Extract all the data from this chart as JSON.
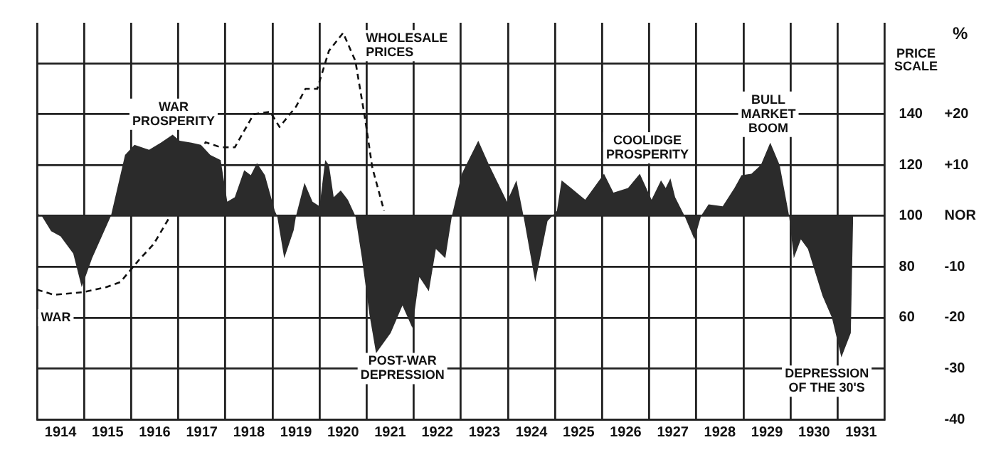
{
  "chart_data": {
    "type": "area",
    "ylabel": "%",
    "y2label": "PRICE SCALE",
    "xlim": [
      1914,
      1932
    ],
    "xticks": [
      {
        "value": 1914,
        "label": null
      },
      {
        "value": 1914.5,
        "label": "1914"
      },
      {
        "value": 1915,
        "label": null
      },
      {
        "value": 1915.5,
        "label": "1915"
      },
      {
        "value": 1916,
        "label": null
      },
      {
        "value": 1916.5,
        "label": "1916"
      },
      {
        "value": 1917,
        "label": null
      },
      {
        "value": 1917.5,
        "label": "1917"
      },
      {
        "value": 1918,
        "label": null
      },
      {
        "value": 1918.5,
        "label": "1918"
      },
      {
        "value": 1919,
        "label": null
      },
      {
        "value": 1919.5,
        "label": "1919"
      },
      {
        "value": 1920,
        "label": null
      },
      {
        "value": 1920.5,
        "label": "1920"
      },
      {
        "value": 1921,
        "label": null
      },
      {
        "value": 1921.5,
        "label": "1921"
      },
      {
        "value": 1922,
        "label": null
      },
      {
        "value": 1922.5,
        "label": "1922"
      },
      {
        "value": 1923,
        "label": null
      },
      {
        "value": 1923.5,
        "label": "1923"
      },
      {
        "value": 1924,
        "label": null
      },
      {
        "value": 1924.5,
        "label": "1924"
      },
      {
        "value": 1925,
        "label": null
      },
      {
        "value": 1925.5,
        "label": "1925"
      },
      {
        "value": 1926,
        "label": null
      },
      {
        "value": 1926.5,
        "label": "1926"
      },
      {
        "value": 1927,
        "label": null
      },
      {
        "value": 1927.5,
        "label": "1927"
      },
      {
        "value": 1928,
        "label": null
      },
      {
        "value": 1928.5,
        "label": "1928"
      },
      {
        "value": 1929,
        "label": null
      },
      {
        "value": 1929.5,
        "label": "1929"
      },
      {
        "value": 1930,
        "label": null
      },
      {
        "value": 1930.5,
        "label": "1930"
      },
      {
        "value": 1931,
        "label": null
      },
      {
        "value": 1931.5,
        "label": "1931"
      },
      {
        "value": 1932,
        "label": null
      }
    ],
    "ylim": [
      -40,
      38
    ],
    "yticks": [
      -40,
      -30,
      -20,
      -10,
      {
        "value": 0,
        "label": "NOR"
      },
      {
        "value": 10,
        "label": "+10"
      },
      {
        "value": 20,
        "label": "+20"
      },
      {
        "value": 30,
        "label": null
      }
    ],
    "y2lim": [
      20,
      176
    ],
    "y2ticks": [
      60,
      80,
      100,
      120,
      140
    ],
    "grid": true,
    "legend": false,
    "marker": "none",
    "series": [
      {
        "color": "#2b2b2b",
        "x": [
          1914.0,
          1914.1,
          1914.3,
          1914.5,
          1914.77,
          1914.95,
          1915.17,
          1915.57,
          1915.87,
          1916.07,
          1916.38,
          1916.63,
          1916.88,
          1917.03,
          1917.28,
          1917.48,
          1917.68,
          1917.9,
          1918.04,
          1918.2,
          1918.4,
          1918.54,
          1918.67,
          1918.84,
          1919.05,
          1919.1,
          1919.25,
          1919.45,
          1919.5,
          1919.68,
          1919.85,
          1920.0,
          1920.12,
          1920.2,
          1920.3,
          1920.45,
          1920.6,
          1920.76,
          1920.9,
          1921.06,
          1921.2,
          1921.51,
          1921.76,
          1921.97,
          1922.12,
          1922.32,
          1922.47,
          1922.67,
          1922.81,
          1923.02,
          1923.37,
          1923.6,
          1923.98,
          1924.18,
          1924.33,
          1924.58,
          1924.84,
          1925.04,
          1925.14,
          1925.34,
          1925.64,
          1926.04,
          1926.24,
          1926.55,
          1926.8,
          1927.05,
          1927.25,
          1927.35,
          1927.45,
          1927.55,
          1927.75,
          1927.96,
          1928.1,
          1928.26,
          1928.56,
          1928.81,
          1928.96,
          1929.17,
          1929.37,
          1929.57,
          1929.77,
          1929.97,
          1930.07,
          1930.22,
          1930.37,
          1930.68,
          1930.88,
          1931.08,
          1931.28,
          1931.33
        ],
        "values": [
          0.5,
          0,
          -3,
          -4,
          -7.4,
          -14,
          -8.3,
          0,
          12,
          14,
          13,
          14.4,
          16,
          14.8,
          14.4,
          14,
          12,
          11,
          2.8,
          3.7,
          9,
          8,
          10.4,
          8,
          1,
          0,
          -8.3,
          -2.8,
          0,
          6.5,
          2.8,
          1.9,
          11,
          10,
          3.7,
          5,
          3.2,
          0,
          -8.3,
          -19.4,
          -27,
          -23,
          -17.6,
          -22,
          -12,
          -14.8,
          -6.5,
          -8.3,
          0,
          8.3,
          14.8,
          10,
          2.8,
          7,
          0,
          -13,
          -1,
          1,
          7,
          5.5,
          3.2,
          8.3,
          4.6,
          5.5,
          8.3,
          3.2,
          7,
          5.5,
          7.4,
          3.7,
          0,
          -4.6,
          0,
          2.3,
          1.9,
          5.5,
          8,
          8.3,
          10,
          14.4,
          10,
          0,
          -8.3,
          -4.6,
          -6.5,
          -15.7,
          -20,
          -27.8,
          -23,
          0
        ]
      },
      {
        "type": "line",
        "name": "WHOLESALE PRICES",
        "axis": "y2",
        "color": "#111111",
        "line_style": "dashed",
        "x": [
          1914.0,
          1914.36,
          1914.97,
          1915.47,
          1915.77,
          1916.18,
          1916.48,
          1916.83,
          1917.58,
          1917.9,
          1918.2,
          1918.6,
          1918.95,
          1919.15,
          1919.5,
          1919.7,
          1919.95,
          1920.2,
          1920.5,
          1920.76,
          1920.96,
          1921.12,
          1921.37
        ],
        "values": [
          71,
          69,
          70,
          72,
          74,
          83,
          89,
          100,
          129,
          127,
          127,
          140,
          141,
          135,
          143,
          150,
          150,
          165,
          172,
          161,
          139,
          119,
          102
        ]
      }
    ],
    "annotations": [
      "WAR PROSPERITY",
      "WAR",
      "POST-WAR DEPRESSION",
      "COOLIDGE PROSPERITY",
      "BULL MARKET BOOM",
      "DEPRESSION OF THE 30'S"
    ]
  }
}
